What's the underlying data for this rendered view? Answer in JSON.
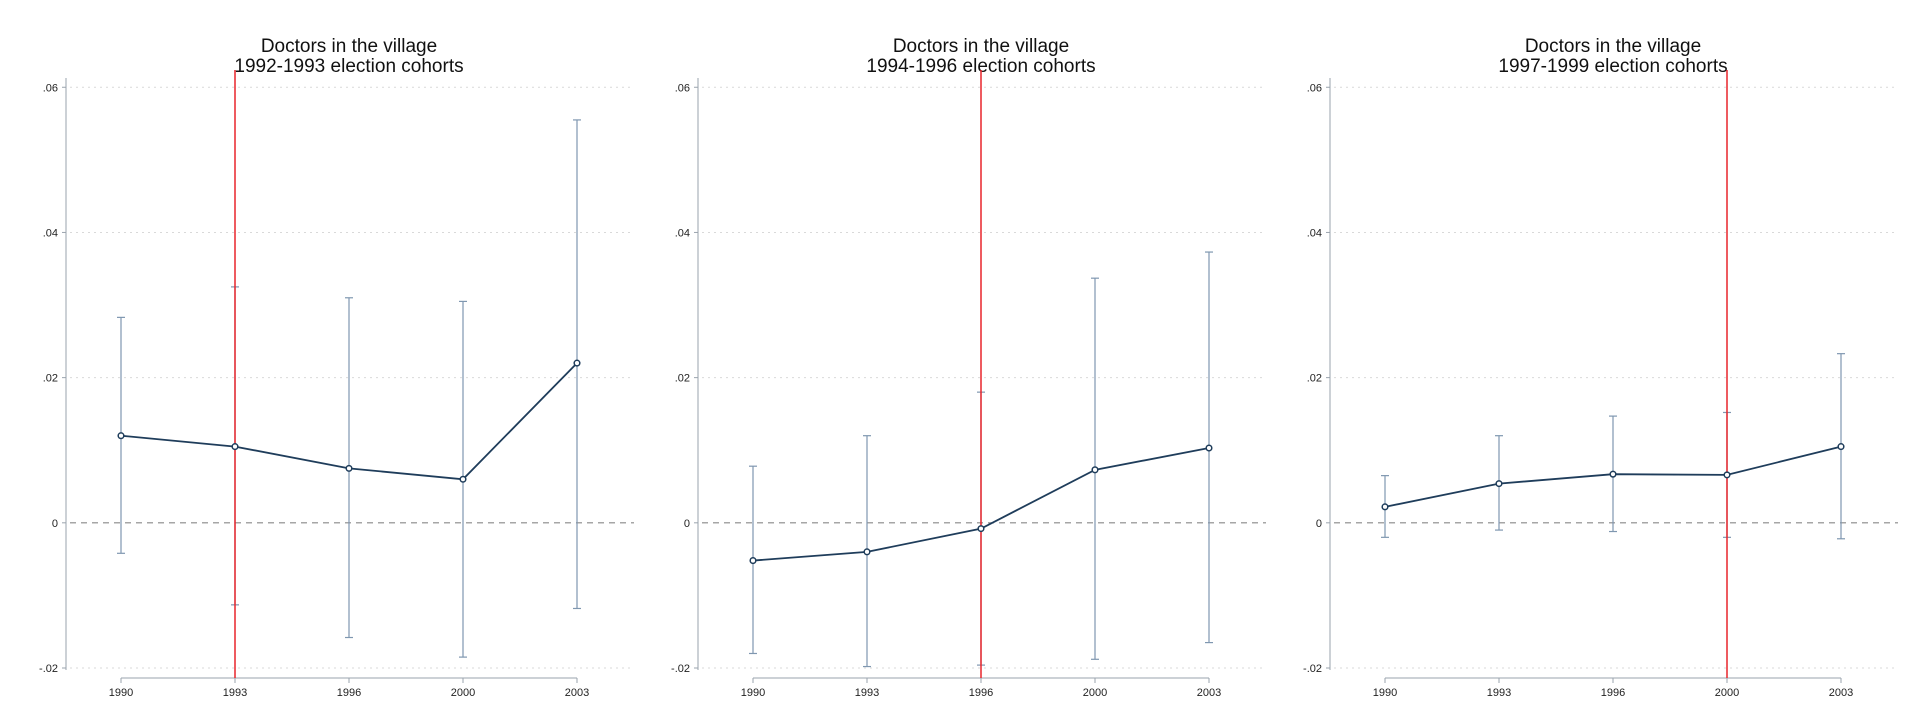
{
  "style": {
    "line_color": "#1f3d5b",
    "ci_color": "#7f97b0",
    "ref_line_color": "#e8252b",
    "zero_line_color": "#888888",
    "grid_color": "#d9d9d9",
    "axis_color": "#9aa3ad"
  },
  "chart_data": [
    {
      "type": "line",
      "title": "Doctors in the village",
      "subtitle": "1992-1993 election cohorts",
      "x": [
        "1990",
        "1993",
        "1996",
        "2000",
        "2003"
      ],
      "y": [
        0.012,
        0.0105,
        0.0075,
        0.006,
        0.022
      ],
      "ci_low": [
        -0.0042,
        -0.0113,
        -0.0158,
        -0.0185,
        -0.0118
      ],
      "ci_high": [
        0.0283,
        0.0325,
        0.031,
        0.0305,
        0.0555
      ],
      "yticks": [
        ".06",
        ".04",
        ".02",
        "0",
        "-.02"
      ],
      "ytick_values": [
        0.06,
        0.04,
        0.02,
        0,
        -0.02
      ],
      "ylim": [
        -0.02,
        0.061
      ],
      "reference_year": "1993",
      "zero_line": true,
      "grid": true
    },
    {
      "type": "line",
      "title": "Doctors in the village",
      "subtitle": "1994-1996 election cohorts",
      "x": [
        "1990",
        "1993",
        "1996",
        "2000",
        "2003"
      ],
      "y": [
        -0.0052,
        -0.004,
        -0.0008,
        0.0073,
        0.0103
      ],
      "ci_low": [
        -0.018,
        -0.0198,
        -0.0196,
        -0.0188,
        -0.0165
      ],
      "ci_high": [
        0.0078,
        0.012,
        0.018,
        0.0337,
        0.0373
      ],
      "yticks": [
        ".06",
        ".04",
        ".02",
        "0",
        "-.02"
      ],
      "ytick_values": [
        0.06,
        0.04,
        0.02,
        0,
        -0.02
      ],
      "ylim": [
        -0.02,
        0.061
      ],
      "reference_year": "1996",
      "zero_line": true,
      "grid": true
    },
    {
      "type": "line",
      "title": "Doctors in the village",
      "subtitle": "1997-1999 election cohorts",
      "x": [
        "1990",
        "1993",
        "1996",
        "2000",
        "2003"
      ],
      "y": [
        0.0022,
        0.0054,
        0.0067,
        0.0066,
        0.0105
      ],
      "ci_low": [
        -0.002,
        -0.001,
        -0.0012,
        -0.002,
        -0.0022
      ],
      "ci_high": [
        0.0065,
        0.012,
        0.0147,
        0.0152,
        0.0233
      ],
      "yticks": [
        ".06",
        ".04",
        ".02",
        "0",
        "-.02"
      ],
      "ytick_values": [
        0.06,
        0.04,
        0.02,
        0,
        -0.02
      ],
      "ylim": [
        -0.02,
        0.061
      ],
      "reference_year": "2000",
      "zero_line": true,
      "grid": true
    }
  ]
}
